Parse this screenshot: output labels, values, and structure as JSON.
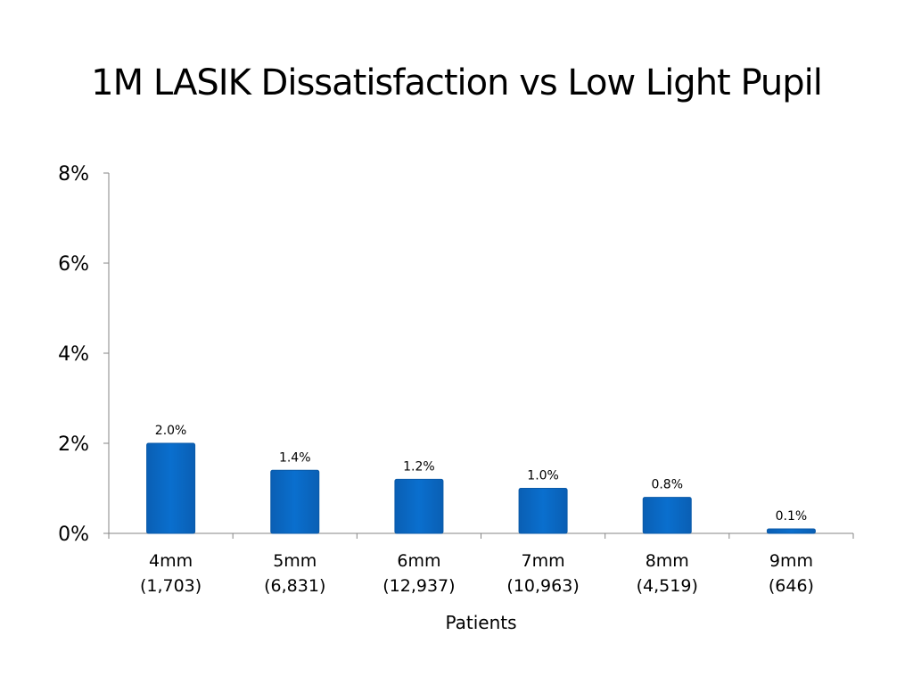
{
  "chart_data": {
    "type": "bar",
    "title": "1M LASIK Dissatisfaction vs Low Light Pupil",
    "xlabel": "Patients",
    "ylabel": "",
    "categories": [
      "4mm",
      "5mm",
      "6mm",
      "7mm",
      "8mm",
      "9mm"
    ],
    "category_counts": [
      "(1,703)",
      "(6,831)",
      "(12,937)",
      "(10,963)",
      "(4,519)",
      "(646)"
    ],
    "values": [
      2.0,
      1.4,
      1.2,
      1.0,
      0.8,
      0.1
    ],
    "data_labels": [
      "2.0%",
      "1.4%",
      "1.2%",
      "1.0%",
      "0.8%",
      "0.1%"
    ],
    "ylim": [
      0,
      8
    ],
    "yticks": [
      0,
      2,
      4,
      6,
      8
    ],
    "ytick_labels": [
      "0%",
      "2%",
      "4%",
      "6%",
      "8%"
    ],
    "grid": false,
    "legend": "none",
    "bar_color": "#0a6fce",
    "bar_edge_color": "#0b5aa8"
  }
}
